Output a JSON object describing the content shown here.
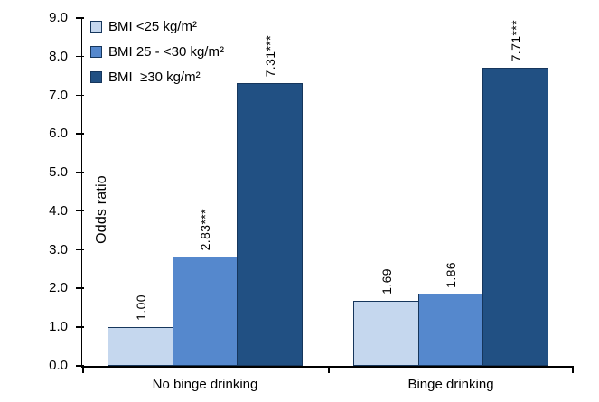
{
  "chart_data": {
    "type": "bar",
    "ylabel": "Odds ratio",
    "ylim": [
      0,
      9
    ],
    "yticks": [
      0,
      1,
      2,
      3,
      4,
      5,
      6,
      7,
      8,
      9
    ],
    "ytick_labels": [
      "0.0",
      "1.0",
      "2.0",
      "3.0",
      "4.0",
      "5.0",
      "6.0",
      "7.0",
      "8.0",
      "9.0"
    ],
    "categories": [
      "No binge drinking",
      "Binge drinking"
    ],
    "series": [
      {
        "name": "BMI <25 kg/m²",
        "color": "#c5d7ee",
        "values": [
          1.0,
          1.69
        ],
        "data_labels": [
          "1.00",
          "1.69"
        ]
      },
      {
        "name": "BMI 25 - <30 kg/m²",
        "color": "#5588cd",
        "values": [
          2.83,
          1.86
        ],
        "data_labels": [
          "2.83***",
          "1.86"
        ]
      },
      {
        "name": "BMI  ≥30 kg/m²",
        "color": "#215083",
        "values": [
          7.31,
          7.71
        ],
        "data_labels": [
          "7.31***",
          "7.71***"
        ]
      }
    ],
    "significance_note": "*** shown on bars 2.83, 7.31 and 7.71",
    "bar_border_color": "#16365c",
    "axis_color": "#000000",
    "text_color": "#000000",
    "legend_position": "top-left",
    "grid": false
  }
}
